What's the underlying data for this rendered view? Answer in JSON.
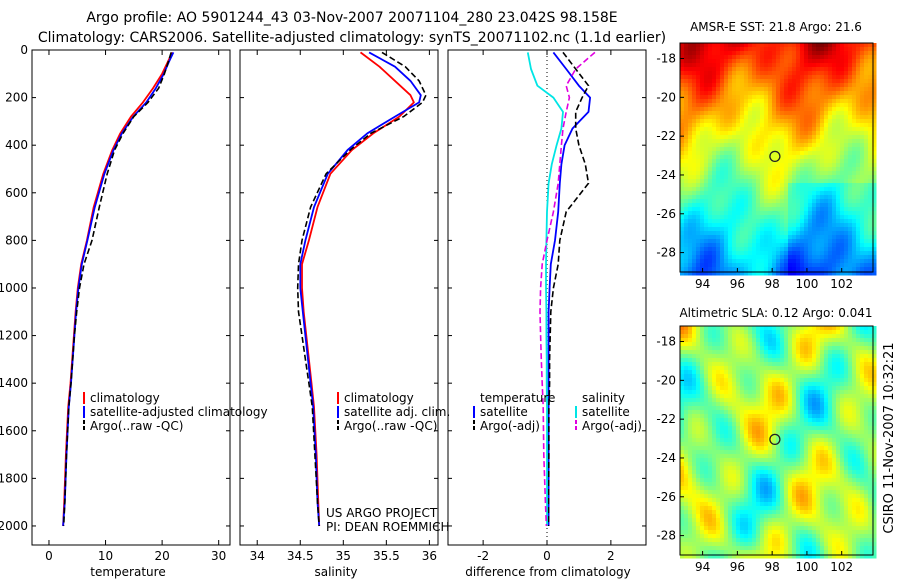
{
  "header": {
    "line1": "Argo profile: AO 5901244_43 03-Nov-2007 20071104_280 23.042S 98.158E",
    "line2": "Climatology: CARS2006. Satellite-adjusted climatology: synTS_20071102.nc (1.1d earlier)"
  },
  "side_label": "CSIRO 11-Nov-2007 10:32:21",
  "colors": {
    "climatology": "#ff0000",
    "satellite": "#0000ff",
    "argo": "#000000",
    "salinity_satellite": "#00e5e5",
    "salinity_argo": "#e000e0",
    "marker": "#222222"
  },
  "chart_data": [
    {
      "type": "line",
      "panel": "temperature",
      "xlabel": "temperature",
      "xlim": [
        -3,
        32
      ],
      "xticks": [
        0,
        10,
        20,
        30
      ],
      "ylim": [
        0,
        2080
      ],
      "yticks": [
        0,
        200,
        400,
        600,
        800,
        1000,
        1200,
        1400,
        1600,
        1800,
        2000
      ],
      "y_reversed": true,
      "legend_position": "lower-middle",
      "legend": [
        "climatology",
        "satellite-adjusted climatology",
        "Argo(..raw -QC)"
      ],
      "series": [
        {
          "name": "climatology",
          "style": "solid",
          "color": "#ff0000",
          "x": [
            21.8,
            21.0,
            20.0,
            18.4,
            16.6,
            14.5,
            12.6,
            11.2,
            9.6,
            7.9,
            6.7,
            5.7,
            5.1,
            4.7,
            4.4,
            4.1,
            3.8,
            3.4,
            3.0,
            2.7,
            2.5
          ],
          "y": [
            10,
            50,
            100,
            160,
            220,
            280,
            350,
            420,
            520,
            660,
            800,
            900,
            1000,
            1100,
            1200,
            1300,
            1400,
            1500,
            1700,
            1900,
            2000
          ]
        },
        {
          "name": "satellite-adjusted climatology",
          "style": "solid",
          "color": "#0000ff",
          "x": [
            22.0,
            21.2,
            20.3,
            18.9,
            17.2,
            14.9,
            12.9,
            11.4,
            9.8,
            8.1,
            6.8,
            5.8,
            5.2,
            4.8,
            4.5,
            4.2,
            3.9,
            3.5,
            3.1,
            2.8,
            2.5
          ],
          "y": [
            10,
            50,
            100,
            160,
            220,
            280,
            350,
            420,
            520,
            660,
            800,
            900,
            1000,
            1100,
            1200,
            1300,
            1400,
            1500,
            1700,
            1900,
            2000
          ]
        },
        {
          "name": "Argo(..raw -QC)",
          "style": "dashed",
          "color": "#000000",
          "x": [
            21.6,
            21.1,
            20.4,
            19.4,
            17.5,
            15.0,
            13.1,
            11.6,
            10.3,
            8.9,
            7.6,
            6.2,
            5.4,
            4.9,
            4.5,
            4.2,
            3.9,
            3.5,
            3.1,
            2.8,
            2.6
          ],
          "y": [
            10,
            50,
            100,
            160,
            220,
            280,
            350,
            420,
            520,
            660,
            800,
            900,
            1000,
            1100,
            1200,
            1300,
            1400,
            1500,
            1700,
            1900,
            2000
          ]
        }
      ]
    },
    {
      "type": "line",
      "panel": "salinity",
      "xlabel": "salinity",
      "xlim": [
        33.8,
        36.1
      ],
      "xticks": [
        34,
        34.5,
        35,
        35.5,
        36
      ],
      "ylim": [
        0,
        2080
      ],
      "y_reversed": true,
      "legend_position": "lower-middle",
      "legend": [
        "climatology",
        "satellite adj. clim.",
        "Argo(..raw -QC)"
      ],
      "annotations": [
        "US ARGO PROJECT",
        "PI: DEAN ROEMMICH"
      ],
      "series": [
        {
          "name": "climatology",
          "style": "solid",
          "color": "#ff0000",
          "x": [
            35.2,
            35.42,
            35.6,
            35.78,
            35.82,
            35.65,
            35.35,
            35.1,
            34.85,
            34.7,
            34.6,
            34.52,
            34.52,
            34.54,
            34.57,
            34.6,
            34.63,
            34.66,
            34.69,
            34.71,
            34.72
          ],
          "y": [
            10,
            70,
            130,
            190,
            220,
            280,
            350,
            420,
            520,
            660,
            800,
            900,
            1000,
            1100,
            1200,
            1300,
            1400,
            1500,
            1700,
            1900,
            2000
          ]
        },
        {
          "name": "satellite adj. clim.",
          "style": "solid",
          "color": "#0000ff",
          "x": [
            35.3,
            35.6,
            35.78,
            35.9,
            35.88,
            35.6,
            35.28,
            35.05,
            34.82,
            34.66,
            34.56,
            34.5,
            34.5,
            34.53,
            34.56,
            34.59,
            34.62,
            34.65,
            34.68,
            34.7,
            34.72
          ],
          "y": [
            10,
            70,
            130,
            190,
            220,
            280,
            350,
            420,
            520,
            660,
            800,
            900,
            1000,
            1100,
            1200,
            1300,
            1400,
            1500,
            1700,
            1900,
            2000
          ]
        },
        {
          "name": "Argo(..raw -QC)",
          "style": "dashed",
          "color": "#000000",
          "x": [
            35.45,
            35.72,
            35.88,
            35.96,
            35.92,
            35.7,
            35.32,
            35.08,
            34.8,
            34.62,
            34.52,
            34.48,
            34.47,
            34.48,
            34.52,
            34.56,
            34.6,
            34.64,
            34.67,
            34.7,
            34.72
          ],
          "y": [
            10,
            70,
            130,
            190,
            220,
            280,
            350,
            420,
            520,
            660,
            800,
            900,
            1000,
            1100,
            1200,
            1300,
            1400,
            1500,
            1700,
            1900,
            2000
          ]
        }
      ]
    },
    {
      "type": "line",
      "panel": "difference",
      "xlabel": "difference from climatology",
      "xlim": [
        -3.1,
        3.1
      ],
      "xticks": [
        -2,
        0,
        2
      ],
      "ylim": [
        0,
        2080
      ],
      "y_reversed": true,
      "legend_position": "lower-middle",
      "legend_headers": [
        "temperature",
        "salinity"
      ],
      "legend": [
        "satellite",
        "Argo(-adj)",
        "satellite",
        "Argo(-adj)"
      ],
      "series": [
        {
          "name": "temperature satellite",
          "style": "solid",
          "color": "#0000ff",
          "x": [
            0.2,
            0.6,
            1.0,
            1.35,
            1.3,
            0.8,
            0.55,
            0.45,
            0.4,
            0.35,
            0.25,
            0.12,
            0.08,
            0.05,
            0.05,
            0.05,
            0.05,
            0.05,
            0.05,
            0.05,
            0.05
          ],
          "y": [
            10,
            80,
            150,
            200,
            260,
            330,
            400,
            480,
            560,
            680,
            800,
            900,
            1000,
            1100,
            1200,
            1300,
            1400,
            1500,
            1700,
            1900,
            2000
          ]
        },
        {
          "name": "temperature Argo(-adj)",
          "style": "dashed",
          "color": "#000000",
          "x": [
            0.5,
            0.9,
            1.3,
            1.1,
            0.9,
            0.9,
            1.0,
            1.2,
            1.3,
            0.6,
            0.4,
            0.35,
            0.2,
            0.12,
            0.1,
            0.08,
            0.08,
            0.06,
            0.06,
            0.05,
            0.05
          ],
          "y": [
            10,
            80,
            150,
            200,
            260,
            330,
            400,
            480,
            560,
            680,
            800,
            900,
            1000,
            1100,
            1200,
            1300,
            1400,
            1500,
            1700,
            1900,
            2000
          ]
        },
        {
          "name": "salinity satellite",
          "style": "solid",
          "color": "#00e5e5",
          "x": [
            -0.6,
            -0.5,
            -0.3,
            0.2,
            0.5,
            0.45,
            0.3,
            0.15,
            0.05,
            0.0,
            -0.02,
            -0.03,
            -0.03,
            -0.02,
            -0.02,
            -0.01,
            -0.01,
            0.0,
            0.0,
            0.0,
            0.0
          ],
          "y": [
            10,
            80,
            150,
            200,
            260,
            330,
            400,
            480,
            560,
            680,
            800,
            900,
            1000,
            1100,
            1200,
            1300,
            1400,
            1500,
            1700,
            1900,
            2000
          ]
        },
        {
          "name": "salinity Argo(-adj)",
          "style": "dashed",
          "color": "#e000e0",
          "x": [
            1.5,
            0.9,
            0.6,
            0.7,
            0.6,
            0.5,
            0.45,
            0.4,
            0.35,
            0.2,
            0.0,
            -0.15,
            -0.2,
            -0.22,
            -0.2,
            -0.18,
            -0.15,
            -0.12,
            -0.1,
            -0.05,
            -0.02
          ],
          "y": [
            10,
            80,
            150,
            200,
            260,
            330,
            400,
            480,
            560,
            680,
            800,
            900,
            1000,
            1100,
            1200,
            1300,
            1400,
            1500,
            1700,
            1900,
            2000
          ]
        }
      ]
    },
    {
      "type": "heatmap",
      "panel": "sst_map",
      "title": "AMSR-E SST: 21.8  Argo: 21.6",
      "xlim": [
        92.7,
        103.8
      ],
      "xticks": [
        94,
        96,
        98,
        100,
        102
      ],
      "ylim": [
        -29,
        -17.2
      ],
      "yticks": [
        -18,
        -20,
        -22,
        -24,
        -26,
        -28
      ],
      "marker": {
        "lon": 98.158,
        "lat": -23.042
      },
      "colormap": "jet",
      "field": "SST decreasing from warm north (orange) to cool south (blue)"
    },
    {
      "type": "heatmap",
      "panel": "sla_map",
      "title": "Altimetric SLA: 0.12  Argo: 0.041",
      "xlim": [
        92.7,
        103.8
      ],
      "xticks": [
        94,
        96,
        98,
        100,
        102
      ],
      "ylim": [
        -29,
        -17.2
      ],
      "yticks": [
        -18,
        -20,
        -22,
        -24,
        -26,
        -28
      ],
      "marker": {
        "lon": 98.158,
        "lat": -23.042
      },
      "colormap": "jet",
      "field": "patchy SLA anomalies, mostly green/yellow with some orange and teal"
    }
  ]
}
